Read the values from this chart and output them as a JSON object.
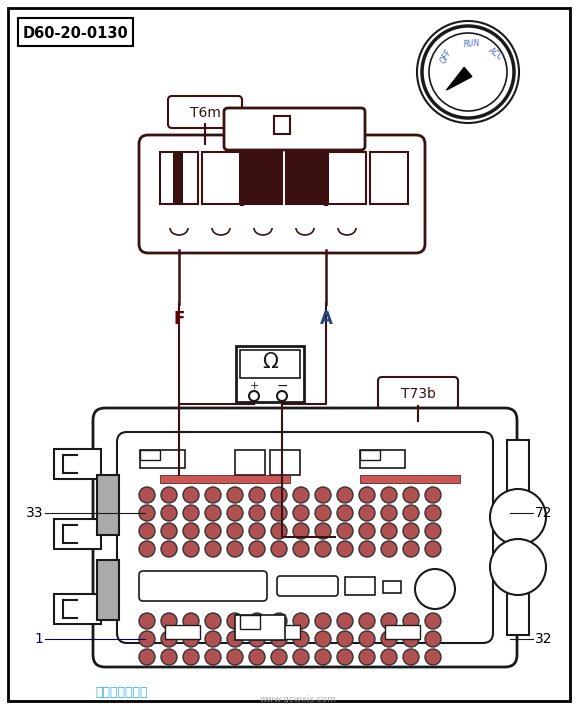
{
  "title": "D60-20-0130",
  "connector_top_label": "T6m",
  "connector_bottom_label": "T73b",
  "pin_F_label": "F",
  "pin_A_label": "A",
  "watermark": "汽车维修技术网",
  "watermark2": "www.qcwxjs.com",
  "bg_color": "#ffffff",
  "border_color": "#000000",
  "line_color": "#1a1a1a",
  "dark_brown": "#3a1010",
  "pin_color": "#b06060",
  "pin_color2": "#c07070"
}
